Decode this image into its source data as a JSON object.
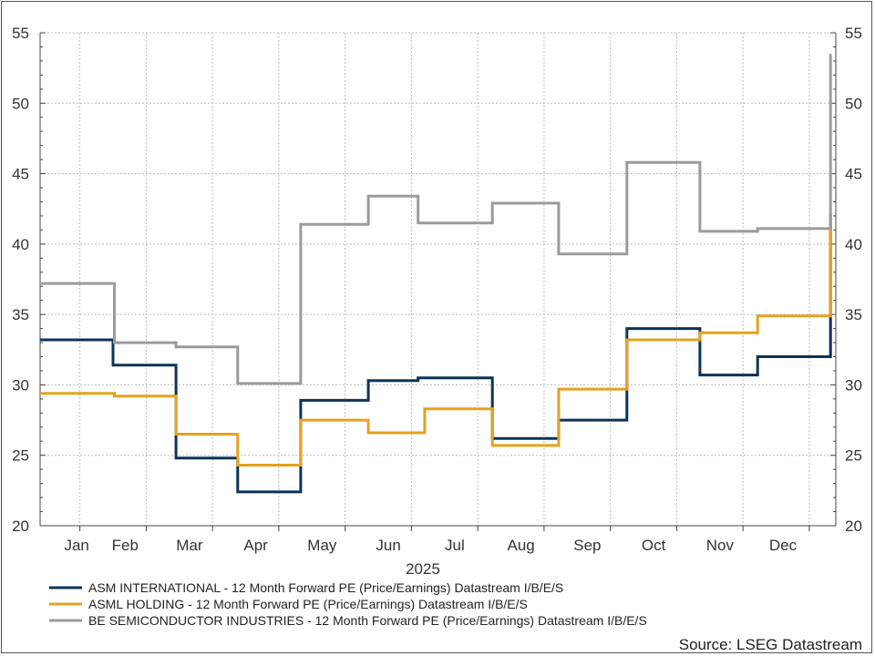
{
  "chart_data": {
    "type": "line",
    "step": true,
    "xlabel": "2025",
    "ylabel": "",
    "ylim": [
      20,
      55
    ],
    "y_ticks": [
      20,
      25,
      30,
      35,
      40,
      45,
      50,
      55
    ],
    "dual_y_axis": true,
    "grid": true,
    "x_domain": [
      0,
      12
    ],
    "month_labels": [
      "Jan",
      "Feb",
      "Mar",
      "Apr",
      "May",
      "Jun",
      "Jul",
      "Aug",
      "Sep",
      "Oct",
      "Nov",
      "Dec"
    ],
    "legend_position": "bottom",
    "source": "Source: LSEG Datastream",
    "series": [
      {
        "name": "ASM INTERNATIONAL - 12 Month Forward PE (Price/Earnings) Datastream I/B/E/S",
        "color": "#0c3355",
        "points": [
          [
            0.0,
            33.2
          ],
          [
            1.1,
            31.4
          ],
          [
            2.05,
            24.8
          ],
          [
            2.98,
            22.4
          ],
          [
            3.93,
            28.9
          ],
          [
            4.95,
            30.3
          ],
          [
            5.7,
            30.5
          ],
          [
            6.82,
            26.2
          ],
          [
            7.82,
            27.5
          ],
          [
            8.85,
            34.0
          ],
          [
            9.95,
            30.7
          ],
          [
            10.82,
            32.0
          ],
          [
            11.92,
            42.0
          ]
        ]
      },
      {
        "name": "ASML HOLDING - 12 Month Forward PE (Price/Earnings) Datastream I/B/E/S",
        "color": "#e5a21f",
        "points": [
          [
            0.0,
            29.4
          ],
          [
            1.12,
            29.2
          ],
          [
            2.05,
            26.5
          ],
          [
            2.98,
            24.3
          ],
          [
            3.93,
            27.5
          ],
          [
            4.95,
            26.6
          ],
          [
            5.8,
            28.3
          ],
          [
            6.82,
            25.7
          ],
          [
            7.82,
            29.7
          ],
          [
            8.85,
            33.2
          ],
          [
            9.95,
            33.7
          ],
          [
            10.82,
            34.9
          ],
          [
            11.92,
            42.2
          ]
        ]
      },
      {
        "name": "BE SEMICONDUCTOR INDUSTRIES - 12 Month Forward PE (Price/Earnings) Datastream I/B/E/S",
        "color": "#9b9b9b",
        "points": [
          [
            0.0,
            37.2
          ],
          [
            1.12,
            33.0
          ],
          [
            2.05,
            32.7
          ],
          [
            2.98,
            30.1
          ],
          [
            3.93,
            41.4
          ],
          [
            4.95,
            43.4
          ],
          [
            5.7,
            41.5
          ],
          [
            6.82,
            42.9
          ],
          [
            7.82,
            39.3
          ],
          [
            8.85,
            45.8
          ],
          [
            9.95,
            40.9
          ],
          [
            10.82,
            41.1
          ],
          [
            11.92,
            53.5
          ]
        ]
      }
    ]
  }
}
